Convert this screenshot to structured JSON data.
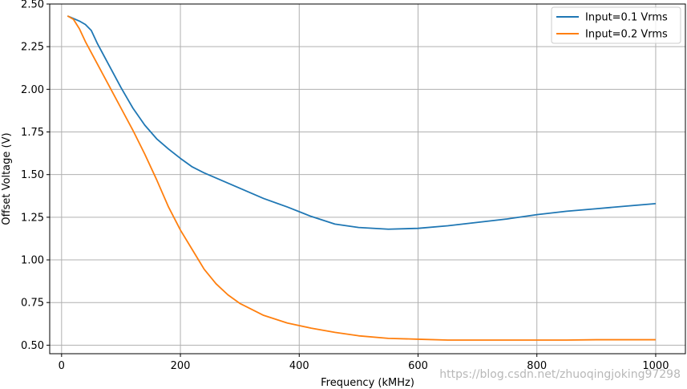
{
  "chart_data": {
    "type": "line",
    "xlabel": "Frequency (kMHz)",
    "ylabel": "Offset Voltage (V)",
    "xlim": [
      -20,
      1050
    ],
    "ylim": [
      0.45,
      2.5
    ],
    "xticks": [
      0,
      200,
      400,
      600,
      800,
      1000
    ],
    "yticks": [
      0.5,
      0.75,
      1.0,
      1.25,
      1.5,
      1.75,
      2.0,
      2.25,
      2.5
    ],
    "grid": true,
    "legend_position": "top-right",
    "series": [
      {
        "name": "Input=0.1 Vrms",
        "color": "#1f77b4",
        "x": [
          10,
          20,
          30,
          40,
          50,
          60,
          80,
          100,
          120,
          140,
          160,
          180,
          200,
          220,
          240,
          260,
          280,
          300,
          340,
          380,
          420,
          460,
          500,
          550,
          600,
          650,
          700,
          750,
          800,
          850,
          900,
          950,
          1000
        ],
        "y": [
          2.43,
          2.415,
          2.4,
          2.38,
          2.345,
          2.27,
          2.14,
          2.01,
          1.89,
          1.79,
          1.71,
          1.65,
          1.595,
          1.545,
          1.51,
          1.48,
          1.45,
          1.42,
          1.36,
          1.31,
          1.255,
          1.21,
          1.19,
          1.18,
          1.185,
          1.2,
          1.22,
          1.24,
          1.265,
          1.285,
          1.3,
          1.315,
          1.33
        ]
      },
      {
        "name": "Input=0.2 Vrms",
        "color": "#ff7f0e",
        "x": [
          10,
          20,
          30,
          40,
          60,
          80,
          100,
          120,
          140,
          160,
          180,
          200,
          220,
          240,
          260,
          280,
          300,
          340,
          380,
          420,
          460,
          500,
          550,
          600,
          650,
          700,
          750,
          800,
          850,
          900,
          950,
          1000
        ],
        "y": [
          2.43,
          2.41,
          2.355,
          2.28,
          2.15,
          2.02,
          1.89,
          1.76,
          1.62,
          1.47,
          1.31,
          1.175,
          1.06,
          0.945,
          0.86,
          0.795,
          0.745,
          0.675,
          0.63,
          0.6,
          0.575,
          0.555,
          0.54,
          0.535,
          0.53,
          0.53,
          0.53,
          0.53,
          0.53,
          0.532,
          0.532,
          0.532
        ]
      }
    ]
  },
  "watermark": "https://blog.csdn.net/zhuoqingjoking97298"
}
